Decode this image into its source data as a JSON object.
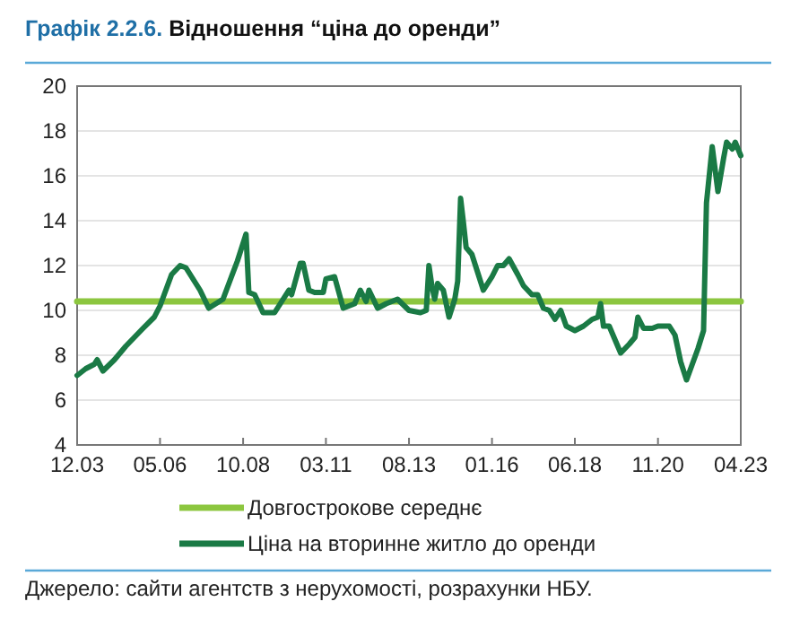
{
  "chart_data": {
    "type": "line",
    "title": "Графік 2.2.6. Відношення “ціна до оренди”",
    "annotations": [
      "Джерело: сайти агентств з нерухомості, розрахунки НБУ."
    ],
    "xlim": [
      "2003-12",
      "2023-04"
    ],
    "xticks": [
      {
        "value": "2003-12",
        "label": "12.03"
      },
      {
        "value": "2006-05",
        "label": "05.06"
      },
      {
        "value": "2008-10",
        "label": "10.08"
      },
      {
        "value": "2011-03",
        "label": "03.11"
      },
      {
        "value": "2013-08",
        "label": "08.13"
      },
      {
        "value": "2016-01",
        "label": "01.16"
      },
      {
        "value": "2018-06",
        "label": "06.18"
      },
      {
        "value": "2020-11",
        "label": "11.20"
      },
      {
        "value": "2023-04",
        "label": "04.23"
      }
    ],
    "ylim": [
      4,
      20
    ],
    "yticks": [
      4,
      6,
      8,
      10,
      12,
      14,
      16,
      18,
      20
    ],
    "grid": "y",
    "legend": "bottom",
    "series": [
      {
        "name": "Довгострокове середнє",
        "color": "#8cc63f",
        "x": [
          "2003-12",
          "2023-04"
        ],
        "values": [
          10.4,
          10.4
        ]
      },
      {
        "name": "Ціна на вторинне житло до оренди",
        "color": "#1a7a45",
        "x": [
          "2003-12",
          "2004-03",
          "2004-06",
          "2004-07",
          "2004-09",
          "2005-01",
          "2005-05",
          "2005-11",
          "2006-03",
          "2006-05",
          "2006-09",
          "2006-12",
          "2007-02",
          "2007-07",
          "2007-10",
          "2008-03",
          "2008-08",
          "2008-11",
          "2008-12",
          "2009-02",
          "2009-05",
          "2009-09",
          "2009-12",
          "2010-02",
          "2010-03",
          "2010-06",
          "2010-07",
          "2010-09",
          "2010-11",
          "2011-02",
          "2011-03",
          "2011-06",
          "2011-09",
          "2012-01",
          "2012-03",
          "2012-05",
          "2012-06",
          "2012-09",
          "2012-12",
          "2013-04",
          "2013-08",
          "2013-12",
          "2014-02",
          "2014-03",
          "2014-04",
          "2014-05",
          "2014-06",
          "2014-08",
          "2014-10",
          "2014-12",
          "2015-01",
          "2015-02",
          "2015-03",
          "2015-04",
          "2015-06",
          "2015-08",
          "2015-10",
          "2016-01",
          "2016-03",
          "2016-05",
          "2016-07",
          "2016-10",
          "2016-12",
          "2017-03",
          "2017-05",
          "2017-07",
          "2017-09",
          "2017-11",
          "2018-01",
          "2018-03",
          "2018-06",
          "2018-09",
          "2018-12",
          "2019-02",
          "2019-03",
          "2019-04",
          "2019-06",
          "2019-10",
          "2020-01",
          "2020-03",
          "2020-04",
          "2020-06",
          "2020-09",
          "2020-11",
          "2021-03",
          "2021-05",
          "2021-07",
          "2021-09",
          "2021-11",
          "2022-01",
          "2022-03",
          "2022-04",
          "2022-06",
          "2022-08",
          "2022-10",
          "2022-11",
          "2023-01",
          "2023-02",
          "2023-04"
        ],
        "values": [
          7.1,
          7.4,
          7.6,
          7.8,
          7.3,
          7.8,
          8.4,
          9.2,
          9.7,
          10.2,
          11.6,
          12.0,
          11.9,
          10.9,
          10.1,
          10.5,
          12.2,
          13.4,
          10.8,
          10.7,
          9.9,
          9.9,
          10.5,
          10.9,
          10.7,
          12.1,
          12.1,
          10.9,
          10.8,
          10.8,
          11.4,
          11.5,
          10.1,
          10.3,
          10.9,
          10.4,
          10.9,
          10.1,
          10.3,
          10.5,
          10.0,
          9.9,
          10.0,
          12.0,
          11.1,
          10.5,
          11.2,
          10.9,
          9.7,
          10.5,
          11.3,
          15.0,
          14.0,
          12.8,
          12.5,
          11.7,
          10.9,
          11.5,
          12.0,
          12.0,
          12.3,
          11.6,
          11.1,
          10.7,
          10.7,
          10.1,
          10.0,
          9.6,
          10.0,
          9.3,
          9.1,
          9.3,
          9.6,
          9.7,
          10.3,
          9.3,
          9.3,
          8.1,
          8.5,
          8.8,
          9.7,
          9.2,
          9.2,
          9.3,
          9.3,
          8.9,
          7.7,
          6.9,
          7.6,
          8.3,
          9.1,
          14.8,
          17.3,
          15.3,
          16.8,
          17.5,
          17.2,
          17.5,
          16.9
        ]
      }
    ]
  }
}
